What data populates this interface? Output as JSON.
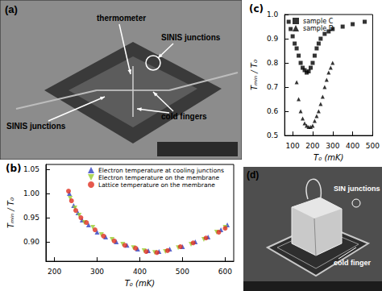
{
  "panels": [
    {
      "label": "(a)",
      "annotations": [
        "thermometer",
        "SINIS junctions",
        "SINIS junctions",
        "cold fingers"
      ]
    },
    {
      "label": "(d)",
      "annotations": [
        "SIN junctions",
        "cold finger"
      ]
    }
  ],
  "chart_data": [
    {
      "type": "scatter",
      "title": "(b)",
      "x_label": "T₀ (mK)",
      "y_label": "Tₘᵢₙ / T₀",
      "xlim": [
        180,
        620
      ],
      "xticks": [
        200,
        300,
        400,
        500,
        600
      ],
      "ylim": [
        0.86,
        1.06
      ],
      "yticks": [
        {
          "value": 0.9,
          "label": "0.90"
        },
        0.95,
        {
          "value": 1.0,
          "label": "1.00"
        },
        1.05
      ],
      "grid": false,
      "legend": "top",
      "series": [
        {
          "name": "Electron temperature at cooling junctions",
          "color": "#3040c0",
          "marker": "triangle",
          "x": [
            235,
            245,
            255,
            265,
            280,
            300,
            320,
            345,
            370,
            395,
            420,
            445,
            470,
            500,
            530,
            560,
            590,
            605
          ],
          "values": [
            1.0,
            0.975,
            0.96,
            0.945,
            0.935,
            0.92,
            0.91,
            0.9,
            0.893,
            0.885,
            0.882,
            0.88,
            0.885,
            0.89,
            0.9,
            0.91,
            0.925,
            0.935
          ]
        },
        {
          "name": "Electron temperature on the membrane",
          "color": "#9acd32",
          "marker": "triangle-down",
          "x": [
            237,
            248,
            258,
            270,
            290,
            310,
            335,
            360,
            385,
            410,
            435,
            460,
            490,
            520,
            550,
            580,
            600
          ],
          "values": [
            0.99,
            0.97,
            0.955,
            0.94,
            0.93,
            0.915,
            0.905,
            0.895,
            0.888,
            0.882,
            0.878,
            0.88,
            0.888,
            0.895,
            0.905,
            0.92,
            0.93
          ]
        },
        {
          "name": "Lattice temperature on the membrane",
          "color": "#e03020",
          "marker": "circle",
          "x": [
            233,
            240,
            250,
            262,
            275,
            295,
            315,
            340,
            365,
            390,
            415,
            440,
            465,
            495,
            525,
            555,
            585,
            600
          ],
          "values": [
            1.005,
            0.985,
            0.965,
            0.95,
            0.94,
            0.925,
            0.912,
            0.902,
            0.893,
            0.887,
            0.88,
            0.878,
            0.882,
            0.89,
            0.898,
            0.908,
            0.92,
            0.928
          ]
        }
      ]
    },
    {
      "type": "scatter",
      "title": "(c)",
      "x_label": "T₀ (mK)",
      "y_label": "Tₘᵢₙ / T₀",
      "xlim": [
        60,
        500
      ],
      "xticks": [
        100,
        200,
        300,
        400,
        500
      ],
      "ylim": [
        0.5,
        1.0
      ],
      "yticks": [
        0.5,
        0.6,
        0.7,
        0.8,
        0.9,
        {
          "value": 1.0,
          "label": "1.0"
        }
      ],
      "grid": false,
      "legend": "upper left",
      "series": [
        {
          "name": "sample C",
          "color": "#000000",
          "marker": "square",
          "x": [
            80,
            90,
            100,
            110,
            120,
            130,
            140,
            150,
            160,
            170,
            180,
            190,
            200,
            210,
            220,
            230,
            240,
            260,
            280,
            300,
            350,
            400,
            460
          ],
          "values": [
            0.97,
            0.94,
            0.91,
            0.88,
            0.86,
            0.83,
            0.8,
            0.78,
            0.77,
            0.76,
            0.765,
            0.78,
            0.8,
            0.83,
            0.86,
            0.88,
            0.9,
            0.92,
            0.93,
            0.94,
            0.95,
            0.96,
            0.97
          ]
        },
        {
          "name": "sample D",
          "color": "#000000",
          "marker": "triangle",
          "x": [
            120,
            130,
            140,
            150,
            160,
            170,
            180,
            190,
            200,
            210,
            220,
            230,
            240,
            250,
            260,
            270,
            280,
            290,
            300
          ],
          "values": [
            0.72,
            0.65,
            0.6,
            0.57,
            0.55,
            0.54,
            0.535,
            0.535,
            0.54,
            0.56,
            0.58,
            0.6,
            0.63,
            0.66,
            0.7,
            0.73,
            0.76,
            0.78,
            0.8
          ]
        }
      ]
    }
  ]
}
